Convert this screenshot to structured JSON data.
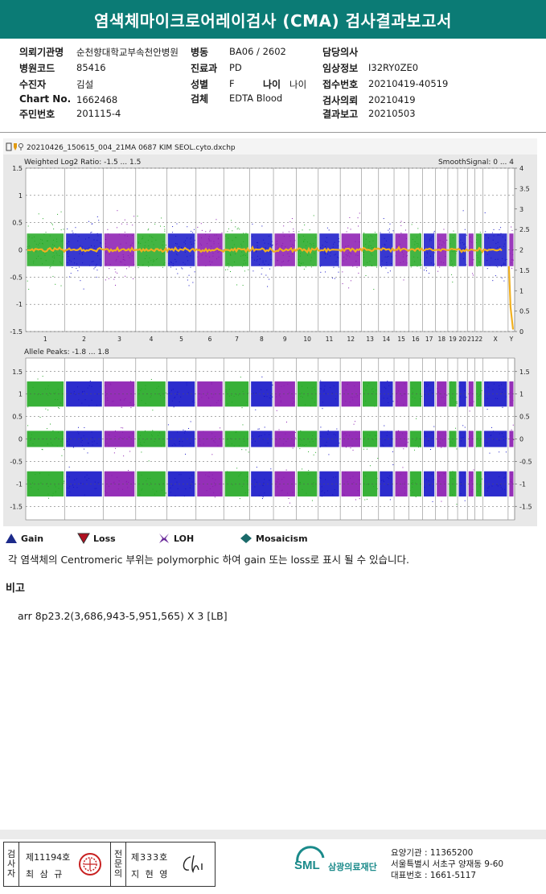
{
  "report_title": "염색체마이크로어레이검사 (CMA) 검사결과보고서",
  "info": {
    "col1": [
      {
        "label": "의뢰기관명",
        "value": "순천향대학교부속천안병원"
      },
      {
        "label": "병원코드",
        "value": "85416"
      },
      {
        "label": "수진자",
        "value": "김설"
      },
      {
        "label": "Chart No.",
        "value": "1662468"
      },
      {
        "label": "주민번호",
        "value": "201115-4"
      }
    ],
    "col2": [
      {
        "label": "병동",
        "value": "BA06 / 2602"
      },
      {
        "label": "진료과",
        "value": "PD"
      },
      {
        "label": "성별",
        "value": "F"
      },
      {
        "label": "검체",
        "value": "EDTA Blood"
      }
    ],
    "age": {
      "label": "나이",
      "value": "나이"
    },
    "col3": [
      {
        "label": "담당의사",
        "value": ""
      },
      {
        "label": "임상정보",
        "value": "I32RY0ZE0"
      },
      {
        "label": "접수번호",
        "value": "20210419-40519"
      },
      {
        "label": "검사의뢰",
        "value": "20210419"
      },
      {
        "label": "결과보고",
        "value": "20210503"
      }
    ]
  },
  "chart_header": {
    "filename": "20210426_150615_004_21MA 0687 KIM SEOL.cyto.dxchp"
  },
  "chart_data": [
    {
      "type": "scatter",
      "title": "Weighted Log2 Ratio: -1.5 ... 1.5",
      "right_title": "SmoothSignal: 0 ... 4",
      "ylim": [
        -1.5,
        1.5
      ],
      "y2lim": [
        0,
        4
      ],
      "yticks": [
        "1.5",
        "1",
        "0.5",
        "0",
        "-0.5",
        "-1",
        "-1.5"
      ],
      "y2ticks": [
        "4",
        "3.5",
        "3",
        "2.5",
        "2",
        "1.5",
        "1",
        "0.5",
        "0"
      ],
      "categories": [
        "1",
        "2",
        "3",
        "4",
        "5",
        "6",
        "7",
        "8",
        "9",
        "10",
        "11",
        "12",
        "13",
        "14",
        "15",
        "16",
        "17",
        "18",
        "19",
        "20",
        "21",
        "22",
        "X",
        "Y"
      ],
      "smooth_signal_baseline": 2,
      "grid": true
    },
    {
      "type": "scatter",
      "title": "Allele Peaks: -1.8 ... 1.8",
      "ylim": [
        -1.8,
        1.8
      ],
      "yticks": [
        "1.5",
        "1",
        "0.5",
        "0",
        "-0.5",
        "-1",
        "-1.5"
      ],
      "bands": [
        1.0,
        0,
        -1.0
      ],
      "grid": true
    }
  ],
  "legend": [
    {
      "label": "Gain",
      "icon": "triangle-up-icon",
      "color": "#1c2a8a"
    },
    {
      "label": "Loss",
      "icon": "triangle-down-icon",
      "color": "#b01020"
    },
    {
      "label": "LOH",
      "icon": "loh-icon",
      "color": "#6a2a9a"
    },
    {
      "label": "Mosaicism",
      "icon": "diamond-icon",
      "color": "#1a6a6a"
    }
  ],
  "chrom_colors": [
    "#22a822",
    "#1515c8",
    "#8a18b0"
  ],
  "note": "각 염색체의 Centromeric 부위는 polymorphic 하여 gain 또는 loss로 표시 될 수 있습니다.",
  "remark_title": "비고",
  "remark_text": "arr 8p23.2(3,686,943-5,951,565) X 3 [LB]",
  "signatures": {
    "inspector_label": [
      "검",
      "사",
      "자"
    ],
    "inspector_no": "제11194호",
    "inspector_name": "최 삼 규",
    "specialist_label": [
      "전",
      "문",
      "의"
    ],
    "specialist_no": "제333호",
    "specialist_name": "지 현 영"
  },
  "org": {
    "logo": "SML",
    "name": "삼광의료재단"
  },
  "contact": {
    "code": "요양기관 : 11365200",
    "address": "서울특별시 서초구 양재동 9-60",
    "phone": "대표번호 : 1661-5117"
  }
}
